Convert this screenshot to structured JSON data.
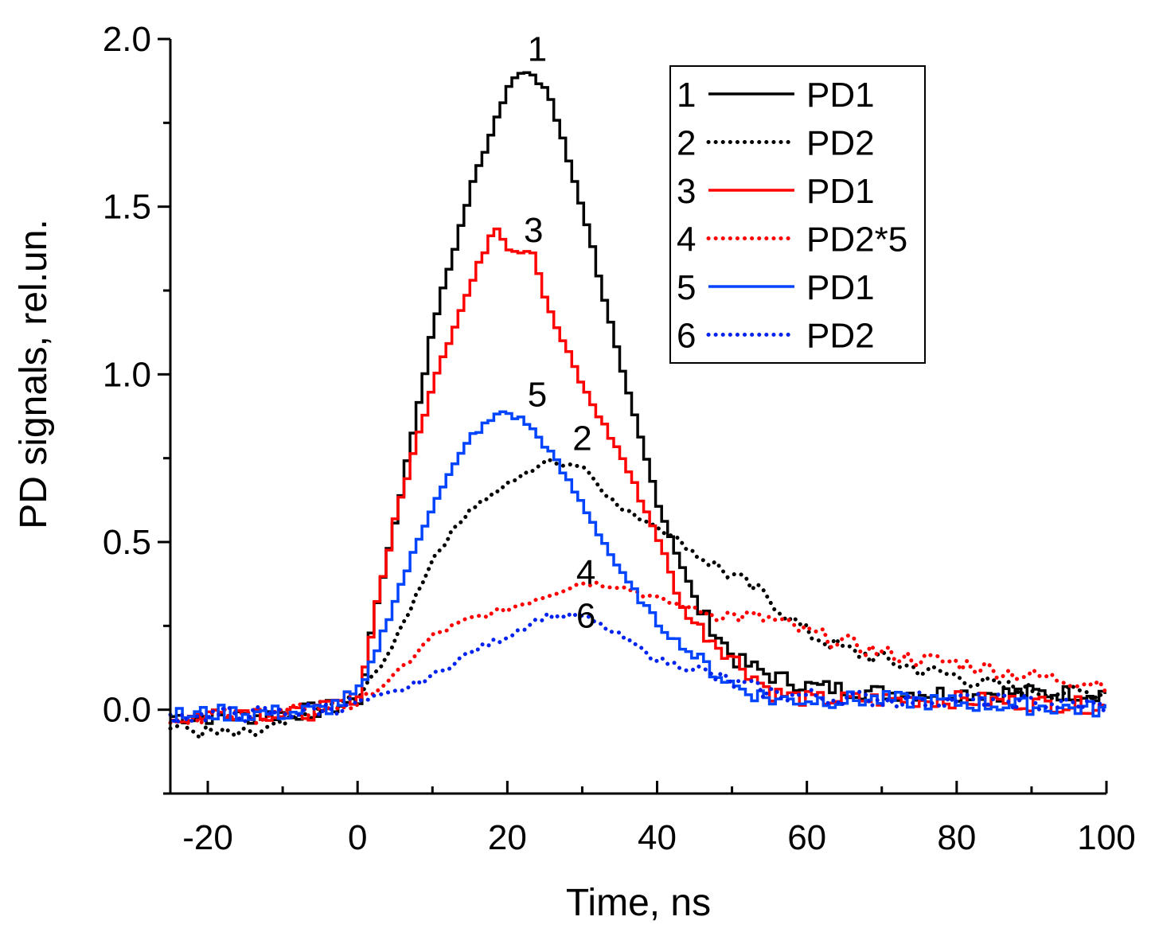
{
  "chart_data": {
    "type": "line",
    "title": "",
    "xlabel": "Time, ns",
    "ylabel": "PD signals, rel.un.",
    "xlim": [
      -25,
      100
    ],
    "ylim": [
      -0.25,
      2.0
    ],
    "xticks": [
      -20,
      0,
      20,
      40,
      60,
      80,
      100
    ],
    "xtick_labels": [
      "-20",
      "0",
      "20",
      "40",
      "60",
      "80",
      "100"
    ],
    "yticks": [
      0.0,
      0.5,
      1.0,
      1.5,
      2.0
    ],
    "ytick_labels": [
      "0.0",
      "0.5",
      "1.0",
      "1.5",
      "2.0"
    ],
    "grid": false,
    "legend_position": "top-right",
    "series": [
      {
        "id": "1",
        "name": "PD1",
        "color": "#000000",
        "style": "solid",
        "x": [
          -25,
          -20,
          -15,
          -10,
          -5,
          0,
          2,
          5,
          10,
          15,
          20,
          22,
          25,
          30,
          35,
          40,
          45,
          50,
          55,
          60,
          70,
          80,
          90,
          100
        ],
        "y": [
          -0.02,
          -0.02,
          -0.02,
          -0.01,
          0.0,
          0.03,
          0.3,
          0.6,
          1.17,
          1.57,
          1.88,
          1.9,
          1.85,
          1.47,
          1.0,
          0.6,
          0.31,
          0.15,
          0.1,
          0.07,
          0.05,
          0.05,
          0.05,
          0.05
        ]
      },
      {
        "id": "2",
        "name": "PD2",
        "color": "#000000",
        "style": "dotted",
        "x": [
          -25,
          -20,
          -15,
          -10,
          -5,
          0,
          5,
          10,
          15,
          20,
          25,
          30,
          35,
          40,
          45,
          50,
          55,
          60,
          65,
          70,
          75,
          80,
          85,
          90,
          95,
          100
        ],
        "y": [
          -0.05,
          -0.07,
          -0.08,
          -0.05,
          0.0,
          0.03,
          0.2,
          0.45,
          0.6,
          0.67,
          0.74,
          0.73,
          0.6,
          0.55,
          0.47,
          0.4,
          0.33,
          0.23,
          0.18,
          0.15,
          0.12,
          0.1,
          0.07,
          0.06,
          0.05,
          0.05
        ]
      },
      {
        "id": "3",
        "name": "PD1",
        "color": "#ff0000",
        "style": "solid",
        "x": [
          -25,
          -20,
          -15,
          -10,
          -5,
          0,
          2,
          5,
          10,
          15,
          18,
          20,
          23,
          25,
          30,
          35,
          40,
          43,
          45,
          50,
          55,
          60,
          70,
          80,
          90,
          100
        ],
        "y": [
          -0.03,
          -0.01,
          0.0,
          -0.02,
          0.0,
          0.05,
          0.3,
          0.6,
          1.0,
          1.28,
          1.45,
          1.37,
          1.37,
          1.2,
          0.95,
          0.75,
          0.5,
          0.3,
          0.25,
          0.15,
          0.05,
          0.03,
          0.03,
          0.03,
          0.02,
          0.01
        ]
      },
      {
        "id": "4",
        "name": "PD2*5",
        "color": "#ff0000",
        "style": "dotted",
        "x": [
          -25,
          -15,
          -5,
          0,
          5,
          10,
          15,
          20,
          25,
          30,
          35,
          40,
          45,
          50,
          55,
          60,
          65,
          70,
          75,
          80,
          85,
          90,
          95,
          100
        ],
        "y": [
          -0.02,
          -0.02,
          0.0,
          0.02,
          0.1,
          0.22,
          0.27,
          0.3,
          0.34,
          0.38,
          0.37,
          0.33,
          0.3,
          0.28,
          0.27,
          0.23,
          0.2,
          0.17,
          0.15,
          0.14,
          0.12,
          0.1,
          0.09,
          0.08
        ]
      },
      {
        "id": "5",
        "name": "PD1",
        "color": "#0044ff",
        "style": "solid",
        "x": [
          -25,
          -20,
          -10,
          -5,
          0,
          5,
          10,
          15,
          19,
          22,
          25,
          30,
          35,
          40,
          45,
          50,
          55,
          60,
          70,
          80,
          100
        ],
        "y": [
          -0.02,
          -0.01,
          -0.01,
          0.0,
          0.05,
          0.35,
          0.63,
          0.82,
          0.89,
          0.86,
          0.78,
          0.6,
          0.4,
          0.25,
          0.15,
          0.07,
          0.03,
          0.03,
          0.03,
          0.02,
          0.0
        ]
      },
      {
        "id": "6",
        "name": "PD2",
        "color": "#0022ee",
        "style": "dotted",
        "x": [
          -25,
          -10,
          -5,
          0,
          5,
          10,
          15,
          20,
          25,
          30,
          35,
          40,
          45,
          50,
          55,
          60,
          70,
          80,
          90,
          100
        ],
        "y": [
          -0.02,
          -0.01,
          0.0,
          0.02,
          0.05,
          0.1,
          0.17,
          0.22,
          0.28,
          0.28,
          0.22,
          0.15,
          0.12,
          0.08,
          0.05,
          0.04,
          0.03,
          0.03,
          0.02,
          0.01
        ]
      }
    ],
    "annotations": [
      {
        "text": "1",
        "x": 24,
        "y": 1.97
      },
      {
        "text": "3",
        "x": 23.5,
        "y": 1.43
      },
      {
        "text": "5",
        "x": 24,
        "y": 0.94
      },
      {
        "text": "2",
        "x": 30,
        "y": 0.81
      },
      {
        "text": "4",
        "x": 30.5,
        "y": 0.41
      },
      {
        "text": "6",
        "x": 30.5,
        "y": 0.28
      }
    ]
  }
}
